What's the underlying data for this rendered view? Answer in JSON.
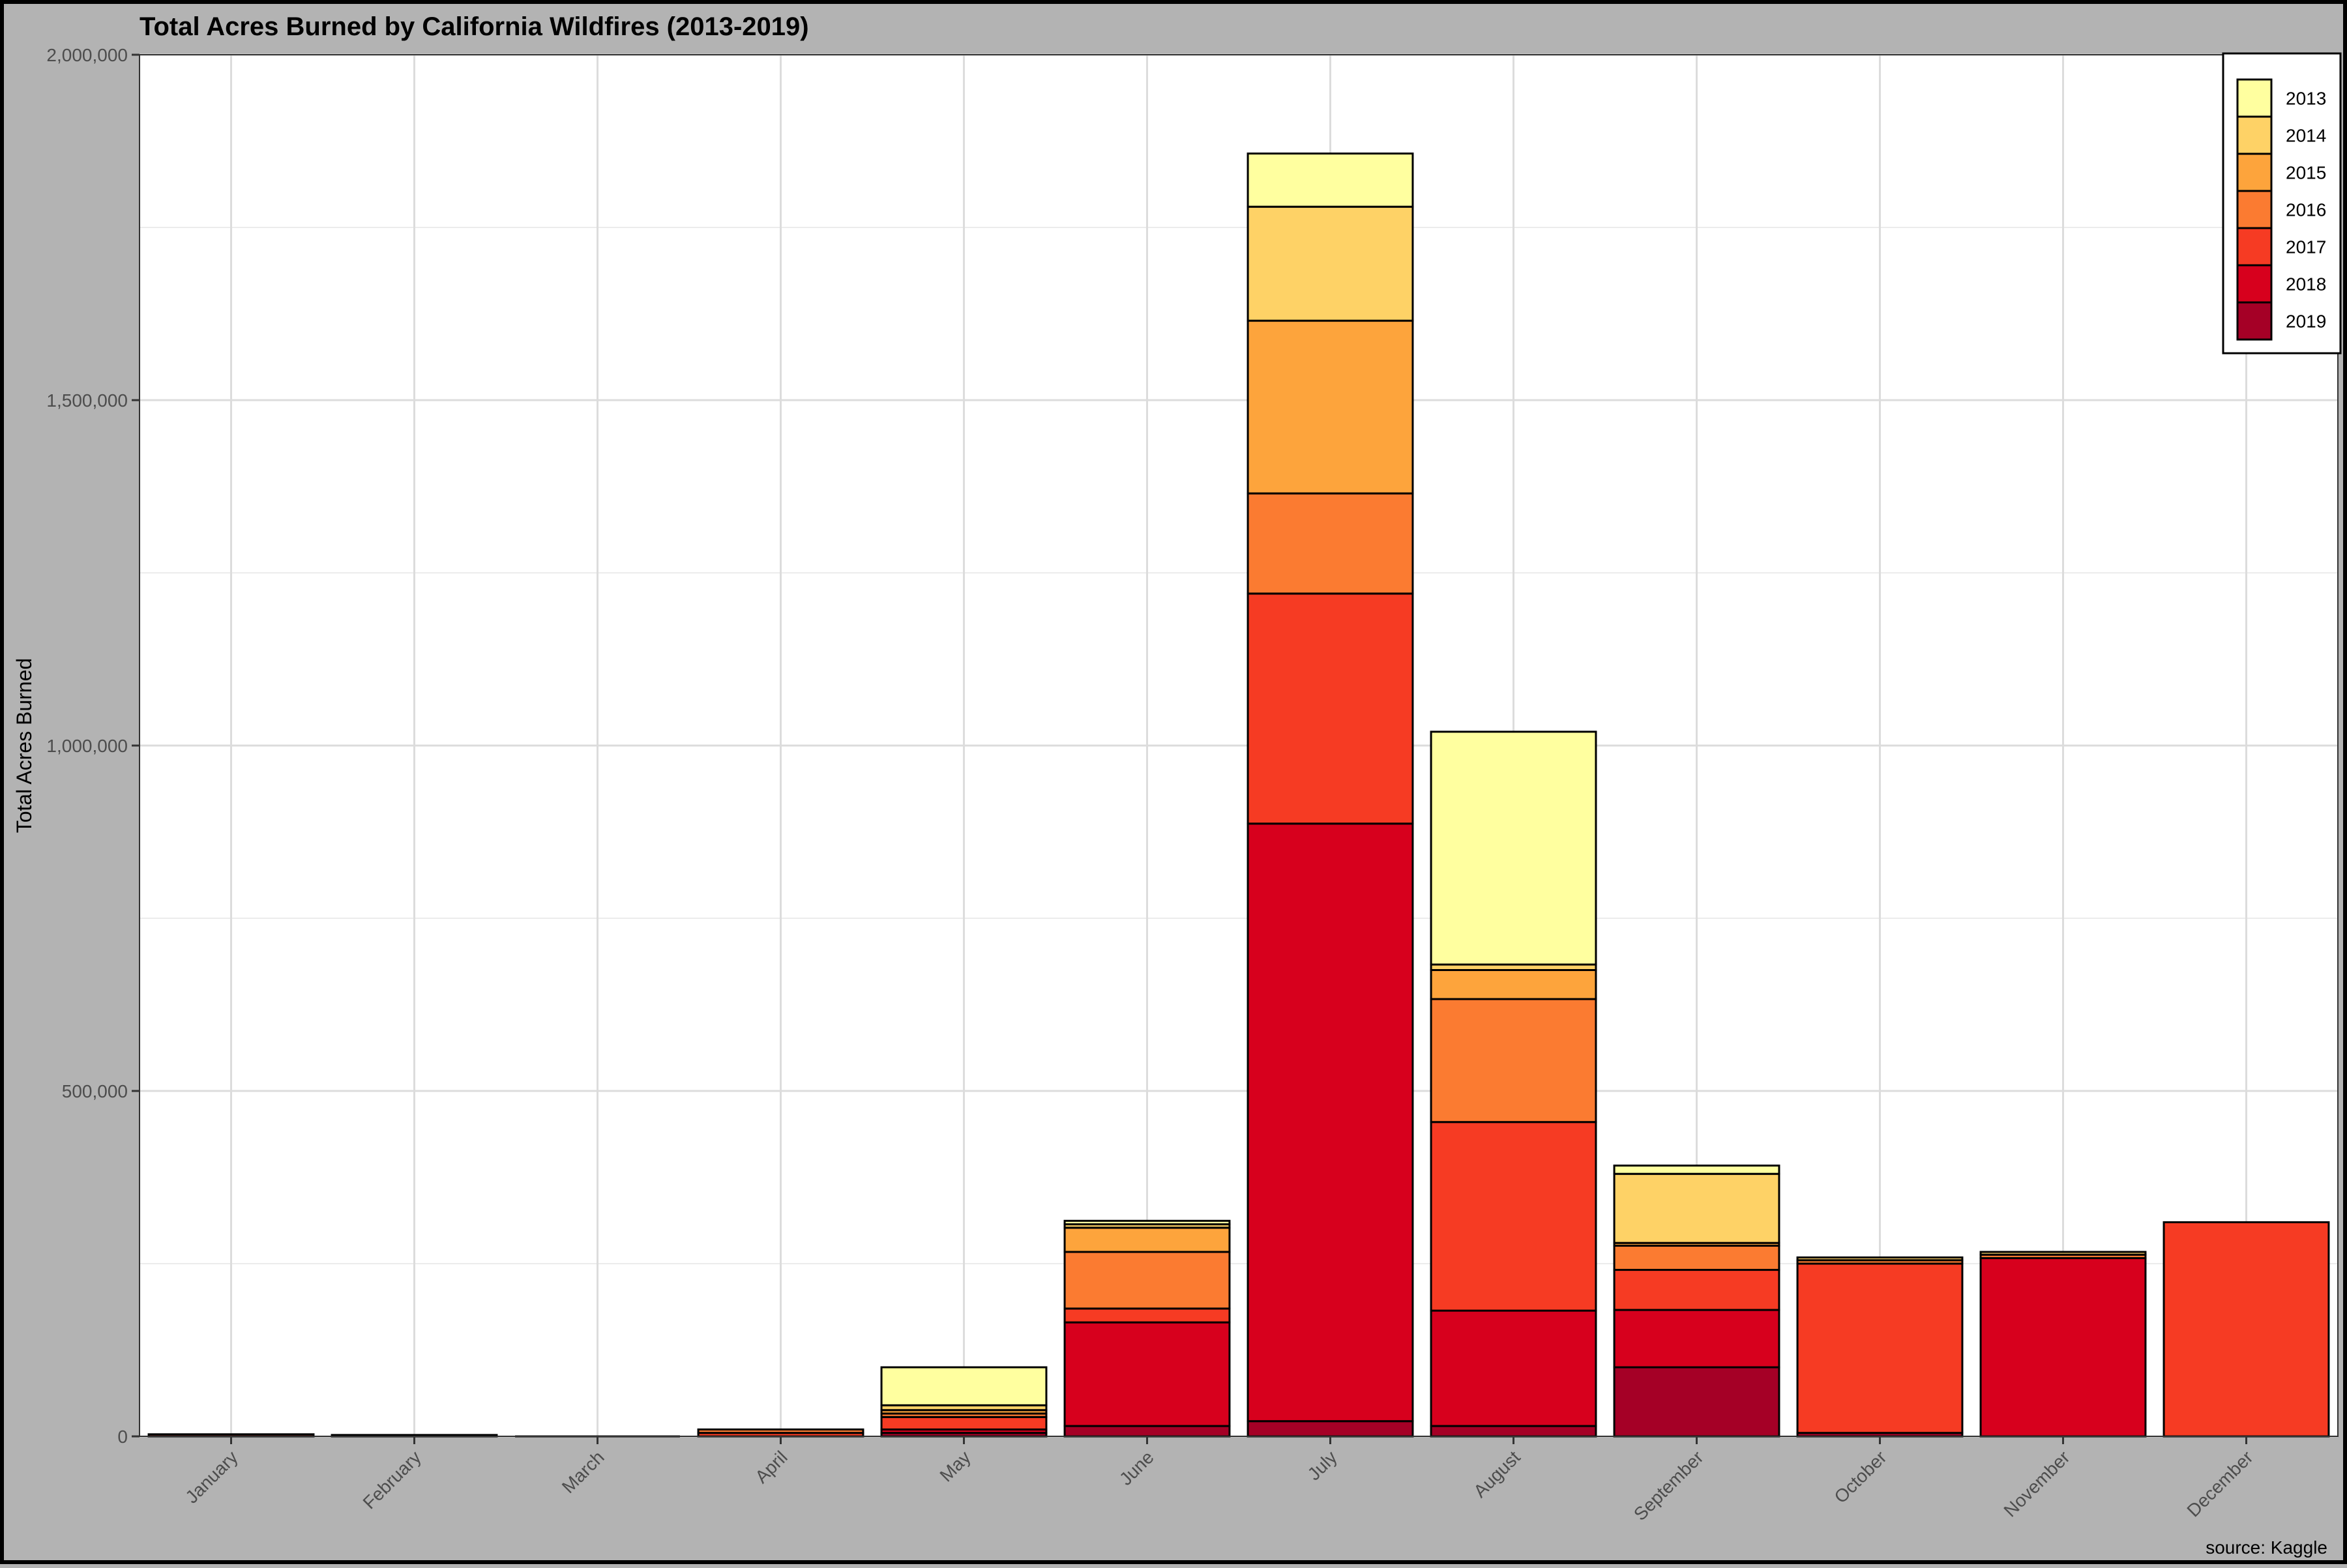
{
  "chart_data": {
    "type": "bar",
    "stacked": true,
    "title": "Total Acres Burned by California Wildfires (2013-2019)",
    "xlabel": "",
    "ylabel": "Total Acres Burned",
    "caption": "source: Kaggle",
    "ylim": [
      0,
      2000000
    ],
    "yticks": [
      0,
      500000,
      1000000,
      1500000,
      2000000
    ],
    "ytick_labels": [
      "0",
      "500,000",
      "1,000,000",
      "1,500,000",
      "2,000,000"
    ],
    "grid": true,
    "legend_position": "top-right",
    "categories": [
      "January",
      "February",
      "March",
      "April",
      "May",
      "June",
      "July",
      "August",
      "September",
      "October",
      "November",
      "December"
    ],
    "series": [
      {
        "name": "2019",
        "color": "#a50026",
        "values": [
          0,
          0,
          0,
          0,
          5000,
          15000,
          22000,
          15000,
          100000,
          5000,
          0,
          0
        ]
      },
      {
        "name": "2018",
        "color": "#d7001d",
        "values": [
          0,
          0,
          0,
          0,
          5000,
          150000,
          865000,
          167000,
          83000,
          0,
          258000,
          0
        ]
      },
      {
        "name": "2017",
        "color": "#f63b23",
        "values": [
          3000,
          2000,
          0,
          5000,
          18000,
          20000,
          333000,
          273000,
          58000,
          245000,
          0,
          310000
        ]
      },
      {
        "name": "2016",
        "color": "#fb7b31",
        "values": [
          0,
          0,
          0,
          5000,
          5000,
          82000,
          145000,
          178000,
          35000,
          5000,
          5000,
          0
        ]
      },
      {
        "name": "2015",
        "color": "#fda43c",
        "values": [
          0,
          0,
          0,
          0,
          5000,
          35000,
          250000,
          42000,
          4000,
          0,
          0,
          0
        ]
      },
      {
        "name": "2014",
        "color": "#fed266",
        "values": [
          0,
          0,
          0,
          0,
          7000,
          5000,
          165000,
          8000,
          100000,
          4000,
          4000,
          0
        ]
      },
      {
        "name": "2013",
        "color": "#ffff9f",
        "values": [
          0,
          0,
          0,
          0,
          55000,
          5000,
          77000,
          337000,
          12000,
          0,
          0,
          0
        ]
      }
    ]
  }
}
